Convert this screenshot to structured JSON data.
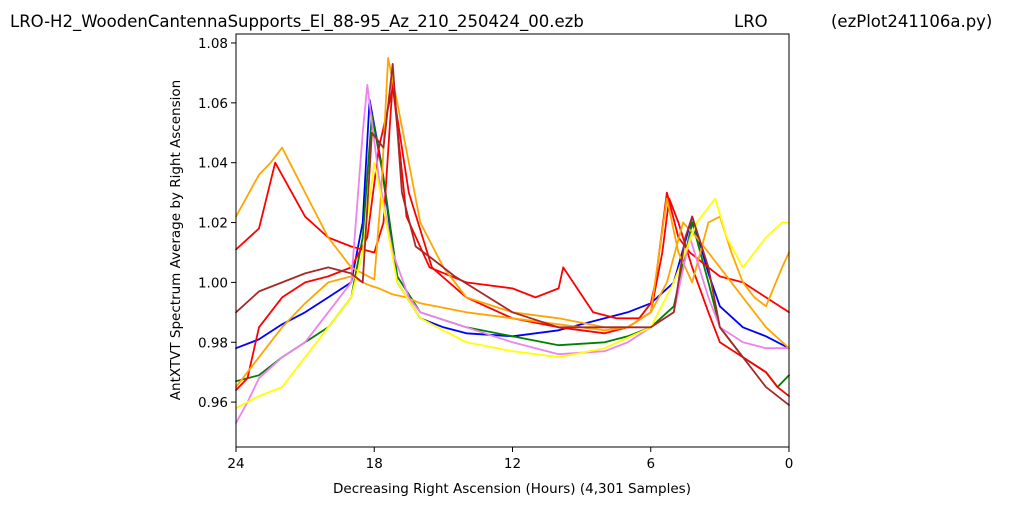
{
  "header": {
    "left": "LRO-H2_WoodenCantennaSupports_El_88-95_Az_210_250424_00.ezb",
    "center": "LRO",
    "right": "(ezPlot241106a.py)"
  },
  "chart_data": {
    "type": "line",
    "title": "",
    "xlabel": "Decreasing Right Ascension (Hours) (4,301 Samples)",
    "ylabel": "AntXTVT Spectrum Average by Right Ascension",
    "xlim": [
      24,
      0
    ],
    "ylim": [
      0.945,
      1.083
    ],
    "x_ticks": [
      24,
      18,
      12,
      6,
      0
    ],
    "x_tick_labels": [
      "24",
      "18",
      "12",
      "6",
      "0"
    ],
    "y_ticks": [
      0.96,
      0.98,
      1.0,
      1.02,
      1.04,
      1.06,
      1.08
    ],
    "y_tick_labels": [
      "0.96",
      "0.98",
      "1.00",
      "1.02",
      "1.04",
      "1.06",
      "1.08"
    ],
    "grid": false,
    "series": [
      {
        "color": "#0000ff",
        "x": [
          24,
          23,
          22,
          21,
          20,
          19,
          18.5,
          18.2,
          17.7,
          17,
          16,
          15,
          14,
          12,
          10,
          9,
          8,
          7,
          6,
          5,
          4.2,
          3.5,
          3,
          2,
          1,
          0
        ],
        "y": [
          0.978,
          0.981,
          0.986,
          0.99,
          0.995,
          1.0,
          1.02,
          1.061,
          1.04,
          1.0,
          0.988,
          0.985,
          0.983,
          0.982,
          0.984,
          0.986,
          0.988,
          0.99,
          0.993,
          1.0,
          1.022,
          1.003,
          0.992,
          0.985,
          0.982,
          0.978
        ]
      },
      {
        "color": "#008000",
        "x": [
          24,
          23,
          22,
          21,
          20,
          19,
          18.5,
          18.1,
          17.6,
          17,
          16,
          14,
          12,
          10,
          8,
          7,
          6,
          5,
          4.2,
          3.5,
          3,
          2,
          1,
          0.5,
          0
        ],
        "y": [
          0.967,
          0.969,
          0.975,
          0.98,
          0.985,
          0.995,
          1.015,
          1.056,
          1.035,
          1.002,
          0.99,
          0.985,
          0.982,
          0.979,
          0.98,
          0.982,
          0.985,
          0.992,
          1.02,
          1.0,
          0.985,
          0.975,
          0.97,
          0.965,
          0.969
        ]
      },
      {
        "color": "#ff0000",
        "x": [
          24,
          23,
          22.3,
          21,
          20,
          19,
          18,
          17.6,
          17.2,
          16.6,
          15.6,
          14,
          12,
          11,
          10,
          9.8,
          8.5,
          7.5,
          6.5,
          6,
          5.8,
          5.3,
          4.8,
          4.3,
          3.5,
          3,
          2,
          1,
          0
        ],
        "y": [
          1.011,
          1.018,
          1.04,
          1.022,
          1.015,
          1.012,
          1.01,
          1.02,
          1.067,
          1.022,
          1.005,
          1.0,
          0.998,
          0.995,
          0.998,
          1.005,
          0.99,
          0.988,
          0.988,
          0.993,
          1.0,
          1.03,
          1.015,
          1.01,
          1.005,
          1.002,
          1.0,
          0.995,
          0.99
        ]
      },
      {
        "color": "#ff0000",
        "x": [
          24,
          23.5,
          23,
          22,
          21,
          20,
          19,
          18.3,
          17.8,
          17.2,
          16.5,
          15.5,
          14,
          12,
          10,
          8,
          7,
          6,
          5.5,
          5.2,
          4.8,
          4.2,
          3.5,
          3,
          2,
          1,
          0.5,
          0
        ],
        "y": [
          0.964,
          0.968,
          0.985,
          0.995,
          1.0,
          1.002,
          1.005,
          1.015,
          1.045,
          1.065,
          1.03,
          1.005,
          0.995,
          0.988,
          0.985,
          0.983,
          0.985,
          0.99,
          1.01,
          1.028,
          1.02,
          1.005,
          0.99,
          0.98,
          0.975,
          0.97,
          0.965,
          0.962
        ]
      },
      {
        "color": "#ffa500",
        "x": [
          24,
          23,
          22.5,
          22,
          21,
          20,
          19,
          18,
          17.7,
          17.4,
          17,
          16,
          15,
          14,
          12,
          10,
          8,
          7,
          6,
          5.3,
          4.8,
          4.2,
          3.5,
          3,
          2.5,
          2,
          1.5,
          1,
          0.3,
          0
        ],
        "y": [
          1.022,
          1.036,
          1.04,
          1.045,
          1.03,
          1.015,
          1.005,
          1.001,
          1.03,
          1.075,
          1.06,
          1.02,
          1.005,
          0.995,
          0.99,
          0.988,
          0.985,
          0.985,
          0.99,
          1.028,
          1.01,
          1.0,
          1.02,
          1.022,
          1.01,
          1.0,
          0.995,
          0.992,
          1.005,
          1.01
        ]
      },
      {
        "color": "#ffa500",
        "x": [
          24,
          23,
          22,
          21,
          20,
          19,
          18.5,
          18.2,
          17.8,
          17.5,
          17.2,
          16.6,
          16,
          14,
          12,
          10,
          9,
          8,
          7,
          6,
          5.3,
          4.6,
          4,
          3,
          2,
          1,
          0
        ],
        "y": [
          0.965,
          0.975,
          0.985,
          0.993,
          1.0,
          1.002,
          1.0,
          0.999,
          0.998,
          0.997,
          0.996,
          0.995,
          0.993,
          0.99,
          0.988,
          0.986,
          0.985,
          0.984,
          0.985,
          0.99,
          1.0,
          1.02,
          1.015,
          1.005,
          0.995,
          0.985,
          0.978
        ]
      },
      {
        "color": "#ee82ee",
        "x": [
          24,
          23.5,
          23,
          22,
          21,
          20,
          19,
          18.5,
          18.3,
          17.8,
          17.2,
          16.5,
          16,
          14,
          12,
          10,
          8,
          7,
          6,
          5,
          4.3,
          3.5,
          3,
          2,
          1,
          0
        ],
        "y": [
          0.953,
          0.96,
          0.968,
          0.975,
          0.98,
          0.99,
          1.0,
          1.05,
          1.066,
          1.035,
          1.01,
          0.995,
          0.99,
          0.985,
          0.98,
          0.976,
          0.977,
          0.98,
          0.985,
          0.99,
          1.015,
          0.995,
          0.985,
          0.98,
          0.978,
          0.978
        ]
      },
      {
        "color": "#ffff00",
        "x": [
          24,
          23,
          22,
          21,
          20,
          19,
          18.5,
          18,
          17.6,
          17,
          16,
          14,
          12,
          10,
          8,
          6,
          5,
          4,
          3.2,
          2.7,
          2,
          1.5,
          1,
          0.3,
          0
        ],
        "y": [
          0.958,
          0.962,
          0.965,
          0.975,
          0.985,
          0.995,
          1.01,
          1.04,
          1.025,
          1.0,
          0.988,
          0.98,
          0.977,
          0.975,
          0.978,
          0.985,
          1.0,
          1.02,
          1.028,
          1.015,
          1.005,
          1.01,
          1.015,
          1.02,
          1.02
        ]
      },
      {
        "color": "#a52a2a",
        "x": [
          24,
          23,
          22,
          21,
          20,
          19,
          18.5,
          18.1,
          17.6,
          17.2,
          16.8,
          16.2,
          15.5,
          14.5,
          12,
          10,
          8,
          7,
          6,
          5,
          4.5,
          4.2,
          3.5,
          3,
          2,
          1,
          0
        ],
        "y": [
          0.99,
          0.997,
          1.0,
          1.003,
          1.005,
          1.003,
          1.0,
          1.05,
          1.045,
          1.073,
          1.03,
          1.012,
          1.008,
          1.002,
          0.99,
          0.985,
          0.985,
          0.985,
          0.985,
          0.99,
          1.015,
          1.022,
          1.005,
          0.985,
          0.975,
          0.965,
          0.959
        ]
      }
    ]
  }
}
